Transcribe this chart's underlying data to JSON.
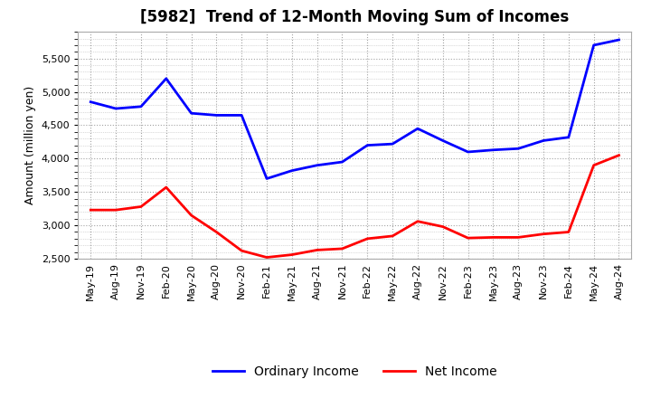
{
  "title": "[5982]  Trend of 12-Month Moving Sum of Incomes",
  "ylabel": "Amount (million yen)",
  "ylim": [
    2500,
    5900
  ],
  "yticks": [
    2500,
    3000,
    3500,
    4000,
    4500,
    5000,
    5500
  ],
  "labels": [
    "May-19",
    "Aug-19",
    "Nov-19",
    "Feb-20",
    "May-20",
    "Aug-20",
    "Nov-20",
    "Feb-21",
    "May-21",
    "Aug-21",
    "Nov-21",
    "Feb-22",
    "May-22",
    "Aug-22",
    "Nov-22",
    "Feb-23",
    "May-23",
    "Aug-23",
    "Nov-23",
    "Feb-24",
    "May-24",
    "Aug-24"
  ],
  "ordinary_income": [
    4850,
    4750,
    4780,
    5200,
    4680,
    4650,
    4650,
    3700,
    3820,
    3900,
    3950,
    4200,
    4220,
    4450,
    4270,
    4100,
    4130,
    4150,
    4270,
    4320,
    5700,
    5780
  ],
  "net_income": [
    3230,
    3230,
    3280,
    3570,
    3150,
    2900,
    2620,
    2520,
    2560,
    2630,
    2650,
    2800,
    2840,
    3060,
    2980,
    2810,
    2820,
    2820,
    2870,
    2900,
    3900,
    4050
  ],
  "ordinary_color": "#0000FF",
  "net_color": "#FF0000",
  "line_width": 2.0,
  "legend_ordinary": "Ordinary Income",
  "legend_net": "Net Income",
  "background_color": "#ffffff",
  "plot_bg_color": "#ffffff",
  "grid_color": "#999999",
  "title_fontsize": 12,
  "axis_fontsize": 8,
  "ylabel_fontsize": 9
}
